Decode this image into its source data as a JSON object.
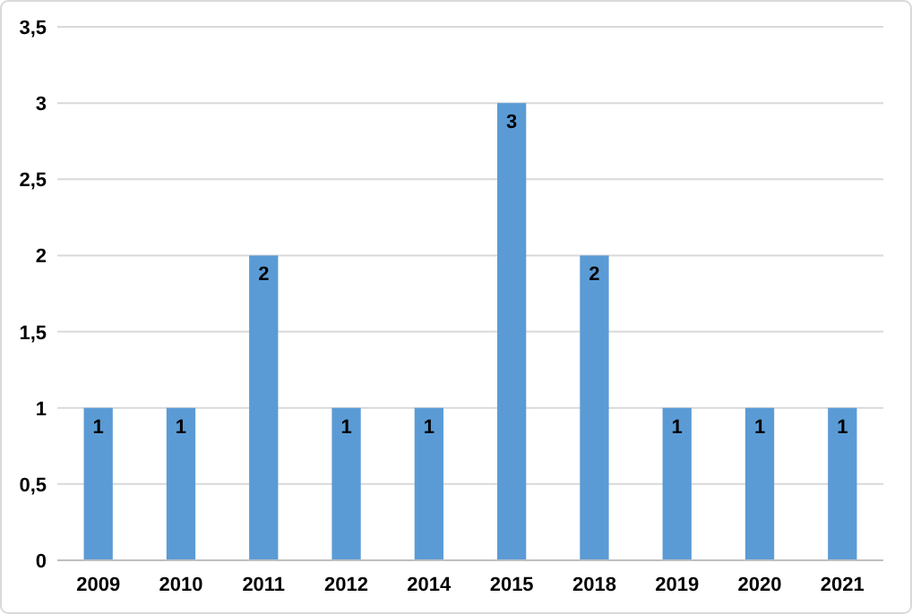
{
  "chart_data": {
    "type": "bar",
    "categories": [
      "2009",
      "2010",
      "2011",
      "2012",
      "2014",
      "2015",
      "2018",
      "2019",
      "2020",
      "2021"
    ],
    "values": [
      1,
      1,
      2,
      1,
      1,
      3,
      2,
      1,
      1,
      1
    ],
    "color": "#5b9bd5",
    "ylim": [
      0,
      3.5
    ],
    "yticks": [
      0,
      {
        "value": 0.5,
        "label": "0,5"
      },
      1,
      {
        "value": 1.5,
        "label": "1,5"
      },
      2,
      {
        "value": 2.5,
        "label": "2,5"
      },
      3,
      {
        "value": 3.5,
        "label": "3,5"
      }
    ],
    "grid": "y",
    "data_labels": true
  }
}
